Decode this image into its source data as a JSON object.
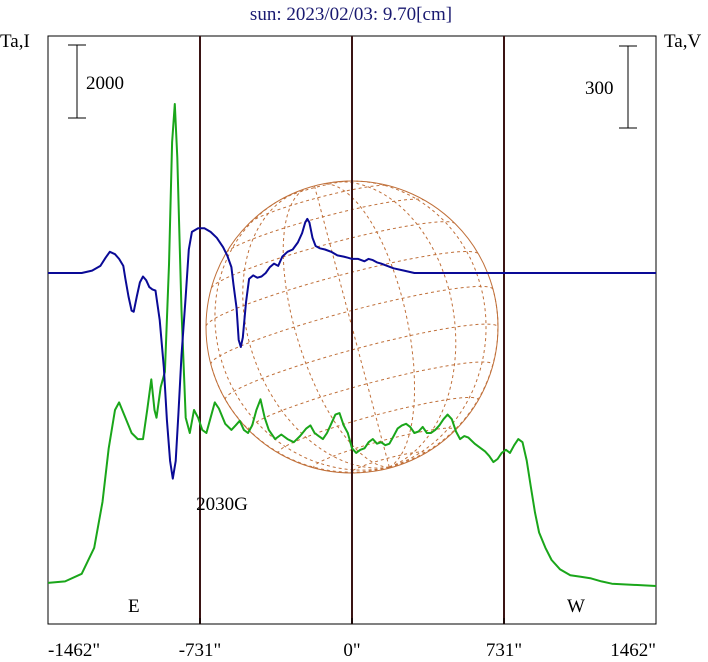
{
  "chart_data": {
    "type": "line",
    "title": "sun: 2023/02/03: 9.70[cm]",
    "ylabel_left": "Ta,I",
    "ylabel_right": "Ta,V",
    "scale_bar_left": "2000",
    "scale_bar_right": "300",
    "x_ticks": [
      {
        "value": -1462,
        "label": "-1462\""
      },
      {
        "value": -731,
        "label": "-731\""
      },
      {
        "value": 0,
        "label": "0\""
      },
      {
        "value": 731,
        "label": "731\""
      },
      {
        "value": 1462,
        "label": "1462\""
      }
    ],
    "vertical_markers": [
      -731,
      0,
      731
    ],
    "limb_labels": {
      "east": "E",
      "west": "W"
    },
    "annotation": {
      "text": "2030G",
      "x": -625
    },
    "xlim": [
      -1462,
      1462
    ],
    "series": [
      {
        "name": "",
        "color": "#1aa61a",
        "axis": "I",
        "points": [
          [
            -1462,
            0.2
          ],
          [
            -1380,
            0.3
          ],
          [
            -1300,
            0.8
          ],
          [
            -1240,
            2.5
          ],
          [
            -1200,
            5.5
          ],
          [
            -1170,
            9.0
          ],
          [
            -1140,
            11.5
          ],
          [
            -1120,
            12.0
          ],
          [
            -1090,
            11.0
          ],
          [
            -1060,
            10.0
          ],
          [
            -1030,
            9.6
          ],
          [
            -1005,
            9.6
          ],
          [
            -985,
            11.5
          ],
          [
            -965,
            13.5
          ],
          [
            -950,
            11.5
          ],
          [
            -940,
            11.0
          ],
          [
            -920,
            13.0
          ],
          [
            -900,
            14.0
          ],
          [
            -880,
            21.0
          ],
          [
            -865,
            29.0
          ],
          [
            -852,
            31.5
          ],
          [
            -840,
            28.0
          ],
          [
            -820,
            18.0
          ],
          [
            -800,
            11.0
          ],
          [
            -780,
            10.0
          ],
          [
            -760,
            11.5
          ],
          [
            -740,
            11.0
          ],
          [
            -720,
            10.2
          ],
          [
            -700,
            10.0
          ],
          [
            -680,
            11.0
          ],
          [
            -660,
            12.0
          ],
          [
            -640,
            11.6
          ],
          [
            -610,
            10.6
          ],
          [
            -580,
            10.2
          ],
          [
            -560,
            10.5
          ],
          [
            -540,
            10.8
          ],
          [
            -520,
            10.2
          ],
          [
            -500,
            10.0
          ],
          [
            -480,
            10.5
          ],
          [
            -460,
            11.5
          ],
          [
            -440,
            12.2
          ],
          [
            -420,
            11.0
          ],
          [
            -400,
            10.2
          ],
          [
            -370,
            9.6
          ],
          [
            -340,
            9.9
          ],
          [
            -310,
            9.6
          ],
          [
            -280,
            9.4
          ],
          [
            -250,
            9.8
          ],
          [
            -220,
            10.3
          ],
          [
            -200,
            10.5
          ],
          [
            -180,
            10.0
          ],
          [
            -160,
            9.8
          ],
          [
            -140,
            9.6
          ],
          [
            -120,
            10.0
          ],
          [
            -100,
            10.6
          ],
          [
            -80,
            11.2
          ],
          [
            -60,
            11.3
          ],
          [
            -40,
            10.5
          ],
          [
            -20,
            10.0
          ],
          [
            0,
            9.0
          ],
          [
            20,
            8.7
          ],
          [
            40,
            8.9
          ],
          [
            60,
            9.0
          ],
          [
            80,
            9.4
          ],
          [
            100,
            9.6
          ],
          [
            120,
            9.3
          ],
          [
            140,
            9.4
          ],
          [
            160,
            9.2
          ],
          [
            180,
            9.3
          ],
          [
            200,
            9.8
          ],
          [
            220,
            10.3
          ],
          [
            240,
            10.5
          ],
          [
            260,
            10.6
          ],
          [
            280,
            10.4
          ],
          [
            300,
            10.0
          ],
          [
            320,
            10.1
          ],
          [
            340,
            10.4
          ],
          [
            360,
            10.0
          ],
          [
            380,
            10.0
          ],
          [
            400,
            10.2
          ],
          [
            420,
            10.5
          ],
          [
            440,
            10.9
          ],
          [
            460,
            11.2
          ],
          [
            480,
            10.9
          ],
          [
            500,
            10.1
          ],
          [
            520,
            9.6
          ],
          [
            540,
            9.8
          ],
          [
            560,
            9.7
          ],
          [
            590,
            9.3
          ],
          [
            620,
            9.0
          ],
          [
            640,
            8.8
          ],
          [
            660,
            8.5
          ],
          [
            680,
            8.1
          ],
          [
            700,
            8.3
          ],
          [
            720,
            8.7
          ],
          [
            740,
            8.9
          ],
          [
            760,
            8.7
          ],
          [
            780,
            9.2
          ],
          [
            800,
            9.6
          ],
          [
            820,
            9.4
          ],
          [
            840,
            8.2
          ],
          [
            860,
            6.5
          ],
          [
            880,
            4.8
          ],
          [
            900,
            3.5
          ],
          [
            930,
            2.5
          ],
          [
            960,
            1.7
          ],
          [
            1000,
            1.1
          ],
          [
            1050,
            0.7
          ],
          [
            1100,
            0.6
          ],
          [
            1150,
            0.5
          ],
          [
            1200,
            0.3
          ],
          [
            1250,
            0.15
          ],
          [
            1462,
            0.0
          ]
        ]
      },
      {
        "name": "",
        "color": "#0a0a96",
        "axis": "V",
        "points": [
          [
            -1462,
            0
          ],
          [
            -1300,
            0
          ],
          [
            -1250,
            2
          ],
          [
            -1210,
            6
          ],
          [
            -1185,
            13
          ],
          [
            -1165,
            18
          ],
          [
            -1140,
            16
          ],
          [
            -1120,
            12
          ],
          [
            -1100,
            6
          ],
          [
            -1090,
            -5
          ],
          [
            -1075,
            -20
          ],
          [
            -1060,
            -32
          ],
          [
            -1050,
            -33
          ],
          [
            -1035,
            -20
          ],
          [
            -1020,
            -8
          ],
          [
            -1005,
            -3
          ],
          [
            -990,
            -6
          ],
          [
            -975,
            -12
          ],
          [
            -960,
            -14
          ],
          [
            -945,
            -15
          ],
          [
            -925,
            -40
          ],
          [
            -905,
            -80
          ],
          [
            -890,
            -125
          ],
          [
            -875,
            -160
          ],
          [
            -862,
            -175
          ],
          [
            -848,
            -160
          ],
          [
            -835,
            -120
          ],
          [
            -820,
            -70
          ],
          [
            -800,
            -20
          ],
          [
            -785,
            20
          ],
          [
            -770,
            35
          ],
          [
            -740,
            38
          ],
          [
            -710,
            38
          ],
          [
            -680,
            35
          ],
          [
            -650,
            30
          ],
          [
            -620,
            22
          ],
          [
            -600,
            15
          ],
          [
            -580,
            5
          ],
          [
            -570,
            -10
          ],
          [
            -555,
            -30
          ],
          [
            -545,
            -57
          ],
          [
            -535,
            -63
          ],
          [
            -525,
            -55
          ],
          [
            -510,
            -25
          ],
          [
            -495,
            -5
          ],
          [
            -475,
            -2
          ],
          [
            -455,
            -4
          ],
          [
            -435,
            -3
          ],
          [
            -415,
            0
          ],
          [
            -395,
            5
          ],
          [
            -375,
            8
          ],
          [
            -355,
            6
          ],
          [
            -335,
            14
          ],
          [
            -310,
            18
          ],
          [
            -285,
            20
          ],
          [
            -260,
            26
          ],
          [
            -240,
            34
          ],
          [
            -225,
            43
          ],
          [
            -215,
            46
          ],
          [
            -205,
            43
          ],
          [
            -190,
            30
          ],
          [
            -175,
            23
          ],
          [
            -155,
            21
          ],
          [
            -130,
            20
          ],
          [
            -100,
            18
          ],
          [
            -70,
            15
          ],
          [
            -40,
            14
          ],
          [
            -20,
            13
          ],
          [
            0,
            12
          ],
          [
            30,
            12
          ],
          [
            60,
            10
          ],
          [
            80,
            12
          ],
          [
            100,
            11
          ],
          [
            120,
            9
          ],
          [
            140,
            8
          ],
          [
            170,
            6
          ],
          [
            200,
            4
          ],
          [
            250,
            2
          ],
          [
            300,
            0
          ],
          [
            1462,
            0
          ]
        ]
      }
    ],
    "grid": false
  }
}
